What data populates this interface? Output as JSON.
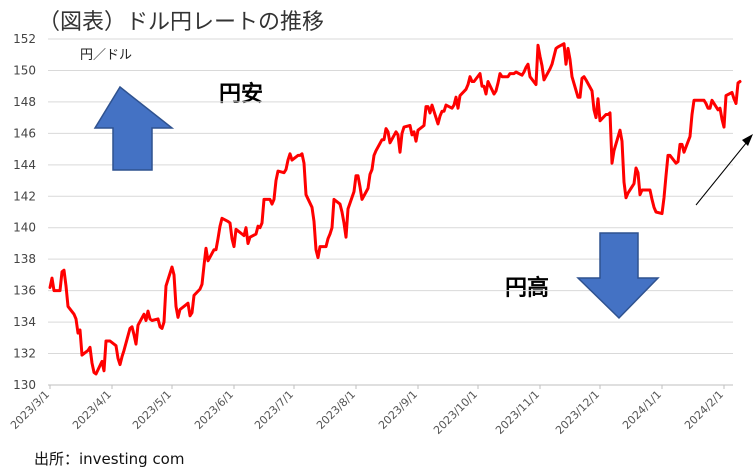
{
  "title": "（図表）ドル円レートの推移",
  "source": "出所：investing com",
  "annotations": {
    "unit": "円／ドル",
    "yen_weak": "円安",
    "yen_strong": "円高"
  },
  "colors": {
    "line": "#ff0000",
    "arrow_fill": "#4472c4",
    "arrow_stroke": "#2f528f",
    "grid": "#d9d9d9"
  },
  "chart_data": {
    "type": "line",
    "ylabel": "円／ドル",
    "ylim": [
      130,
      152
    ],
    "yticks": [
      130,
      132,
      134,
      136,
      138,
      140,
      142,
      144,
      146,
      148,
      150,
      152
    ],
    "xticks": [
      "2023/3/1",
      "2023/4/1",
      "2023/5/1",
      "2023/6/1",
      "2023/7/1",
      "2023/8/1",
      "2023/9/1",
      "2023/10/1",
      "2023/11/1",
      "2023/12/1",
      "2024/1/1",
      "2024/2/1"
    ],
    "grid": "horizontal",
    "legend": "none",
    "series": [
      {
        "points": [
          [
            "2023/3/1",
            136.2
          ],
          [
            "2023/3/2",
            136.8
          ],
          [
            "2023/3/3",
            136.0
          ],
          [
            "2023/3/6",
            136.0
          ],
          [
            "2023/3/7",
            137.2
          ],
          [
            "2023/3/8",
            137.3
          ],
          [
            "2023/3/9",
            136.3
          ],
          [
            "2023/3/10",
            135.0
          ],
          [
            "2023/3/13",
            134.5
          ],
          [
            "2023/3/14",
            134.2
          ],
          [
            "2023/3/15",
            133.3
          ],
          [
            "2023/3/16",
            133.5
          ],
          [
            "2023/3/17",
            131.9
          ],
          [
            "2023/3/20",
            132.2
          ],
          [
            "2023/3/21",
            132.4
          ],
          [
            "2023/3/22",
            131.4
          ],
          [
            "2023/3/23",
            130.8
          ],
          [
            "2023/3/24",
            130.7
          ],
          [
            "2023/3/27",
            131.5
          ],
          [
            "2023/3/28",
            130.9
          ],
          [
            "2023/3/29",
            132.8
          ],
          [
            "2023/3/30",
            132.8
          ],
          [
            "2023/3/31",
            132.8
          ],
          [
            "2023/4/3",
            132.5
          ],
          [
            "2023/4/4",
            131.7
          ],
          [
            "2023/4/5",
            131.3
          ],
          [
            "2023/4/6",
            131.8
          ],
          [
            "2023/4/7",
            132.2
          ],
          [
            "2023/4/10",
            133.6
          ],
          [
            "2023/4/11",
            133.7
          ],
          [
            "2023/4/12",
            133.2
          ],
          [
            "2023/4/13",
            132.6
          ],
          [
            "2023/4/14",
            133.8
          ],
          [
            "2023/4/17",
            134.5
          ],
          [
            "2023/4/18",
            134.1
          ],
          [
            "2023/4/19",
            134.7
          ],
          [
            "2023/4/20",
            134.2
          ],
          [
            "2023/4/21",
            134.1
          ],
          [
            "2023/4/24",
            134.2
          ],
          [
            "2023/4/25",
            133.7
          ],
          [
            "2023/4/26",
            133.6
          ],
          [
            "2023/4/27",
            134.0
          ],
          [
            "2023/4/28",
            136.3
          ],
          [
            "2023/5/1",
            137.5
          ],
          [
            "2023/5/2",
            137.0
          ],
          [
            "2023/5/3",
            135.0
          ],
          [
            "2023/5/4",
            134.3
          ],
          [
            "2023/5/5",
            134.8
          ],
          [
            "2023/5/8",
            135.1
          ],
          [
            "2023/5/9",
            135.2
          ],
          [
            "2023/5/10",
            134.4
          ],
          [
            "2023/5/11",
            134.6
          ],
          [
            "2023/5/12",
            135.7
          ],
          [
            "2023/5/15",
            136.1
          ],
          [
            "2023/5/16",
            136.4
          ],
          [
            "2023/5/17",
            137.6
          ],
          [
            "2023/5/18",
            138.7
          ],
          [
            "2023/5/19",
            137.9
          ],
          [
            "2023/5/22",
            138.6
          ],
          [
            "2023/5/23",
            138.6
          ],
          [
            "2023/5/24",
            139.3
          ],
          [
            "2023/5/25",
            140.1
          ],
          [
            "2023/5/26",
            140.6
          ],
          [
            "2023/5/29",
            140.4
          ],
          [
            "2023/5/30",
            140.3
          ],
          [
            "2023/5/31",
            139.3
          ],
          [
            "2023/6/1",
            138.8
          ],
          [
            "2023/6/2",
            139.9
          ],
          [
            "2023/6/5",
            139.6
          ],
          [
            "2023/6/6",
            139.5
          ],
          [
            "2023/6/7",
            140.0
          ],
          [
            "2023/6/8",
            139.0
          ],
          [
            "2023/6/9",
            139.4
          ],
          [
            "2023/6/12",
            139.6
          ],
          [
            "2023/6/13",
            140.1
          ],
          [
            "2023/6/14",
            140.0
          ],
          [
            "2023/6/15",
            140.3
          ],
          [
            "2023/6/16",
            141.8
          ],
          [
            "2023/6/19",
            141.8
          ],
          [
            "2023/6/20",
            141.5
          ],
          [
            "2023/6/21",
            141.8
          ],
          [
            "2023/6/22",
            143.0
          ],
          [
            "2023/6/23",
            143.6
          ],
          [
            "2023/6/26",
            143.5
          ],
          [
            "2023/6/27",
            143.7
          ],
          [
            "2023/6/28",
            144.3
          ],
          [
            "2023/6/29",
            144.7
          ],
          [
            "2023/6/30",
            144.3
          ],
          [
            "2023/7/3",
            144.6
          ],
          [
            "2023/7/4",
            144.6
          ],
          [
            "2023/7/5",
            144.7
          ],
          [
            "2023/7/6",
            144.1
          ],
          [
            "2023/7/7",
            142.1
          ],
          [
            "2023/7/10",
            141.3
          ],
          [
            "2023/7/11",
            140.4
          ],
          [
            "2023/7/12",
            138.6
          ],
          [
            "2023/7/13",
            138.1
          ],
          [
            "2023/7/14",
            138.8
          ],
          [
            "2023/7/17",
            138.8
          ],
          [
            "2023/7/18",
            139.3
          ],
          [
            "2023/7/19",
            139.6
          ],
          [
            "2023/7/20",
            140.0
          ],
          [
            "2023/7/21",
            141.8
          ],
          [
            "2023/7/24",
            141.5
          ],
          [
            "2023/7/25",
            141.0
          ],
          [
            "2023/7/26",
            140.3
          ],
          [
            "2023/7/27",
            139.4
          ],
          [
            "2023/7/28",
            141.2
          ],
          [
            "2023/7/31",
            142.3
          ],
          [
            "2023/8/1",
            143.3
          ],
          [
            "2023/8/2",
            143.3
          ],
          [
            "2023/8/3",
            142.6
          ],
          [
            "2023/8/4",
            141.8
          ],
          [
            "2023/8/7",
            142.5
          ],
          [
            "2023/8/8",
            143.4
          ],
          [
            "2023/8/9",
            143.7
          ],
          [
            "2023/8/10",
            144.6
          ],
          [
            "2023/8/11",
            144.9
          ],
          [
            "2023/8/14",
            145.6
          ],
          [
            "2023/8/15",
            145.6
          ],
          [
            "2023/8/16",
            146.3
          ],
          [
            "2023/8/17",
            146.1
          ],
          [
            "2023/8/18",
            145.4
          ],
          [
            "2023/8/21",
            146.1
          ],
          [
            "2023/8/22",
            145.9
          ],
          [
            "2023/8/23",
            144.8
          ],
          [
            "2023/8/24",
            146.0
          ],
          [
            "2023/8/25",
            146.4
          ],
          [
            "2023/8/28",
            146.5
          ],
          [
            "2023/8/29",
            145.9
          ],
          [
            "2023/8/30",
            146.1
          ],
          [
            "2023/8/31",
            145.5
          ],
          [
            "2023/9/1",
            146.2
          ],
          [
            "2023/9/4",
            146.5
          ],
          [
            "2023/9/5",
            147.7
          ],
          [
            "2023/9/6",
            147.7
          ],
          [
            "2023/9/7",
            147.3
          ],
          [
            "2023/9/8",
            147.8
          ],
          [
            "2023/9/11",
            146.6
          ],
          [
            "2023/9/12",
            147.1
          ],
          [
            "2023/9/13",
            147.4
          ],
          [
            "2023/9/14",
            147.4
          ],
          [
            "2023/9/15",
            147.8
          ],
          [
            "2023/9/18",
            147.6
          ],
          [
            "2023/9/19",
            147.8
          ],
          [
            "2023/9/20",
            148.3
          ],
          [
            "2023/9/21",
            147.6
          ],
          [
            "2023/9/22",
            148.4
          ],
          [
            "2023/9/25",
            148.8
          ],
          [
            "2023/9/26",
            149.1
          ],
          [
            "2023/9/27",
            149.6
          ],
          [
            "2023/9/28",
            149.3
          ],
          [
            "2023/9/29",
            149.3
          ],
          [
            "2023/10/2",
            149.8
          ],
          [
            "2023/10/3",
            149.0
          ],
          [
            "2023/10/4",
            149.0
          ],
          [
            "2023/10/5",
            148.5
          ],
          [
            "2023/10/6",
            149.3
          ],
          [
            "2023/10/9",
            148.5
          ],
          [
            "2023/10/10",
            148.7
          ],
          [
            "2023/10/11",
            149.2
          ],
          [
            "2023/10/12",
            149.8
          ],
          [
            "2023/10/13",
            149.6
          ],
          [
            "2023/10/16",
            149.6
          ],
          [
            "2023/10/17",
            149.8
          ],
          [
            "2023/10/18",
            149.8
          ],
          [
            "2023/10/19",
            149.8
          ],
          [
            "2023/10/20",
            149.9
          ],
          [
            "2023/10/23",
            149.7
          ],
          [
            "2023/10/24",
            149.9
          ],
          [
            "2023/10/25",
            150.2
          ],
          [
            "2023/10/26",
            150.4
          ],
          [
            "2023/10/27",
            149.6
          ],
          [
            "2023/10/30",
            149.1
          ],
          [
            "2023/10/31",
            151.6
          ],
          [
            "2023/11/1",
            150.9
          ],
          [
            "2023/11/2",
            150.3
          ],
          [
            "2023/11/3",
            149.4
          ],
          [
            "2023/11/6",
            150.1
          ],
          [
            "2023/11/7",
            150.4
          ],
          [
            "2023/11/8",
            150.9
          ],
          [
            "2023/11/9",
            151.4
          ],
          [
            "2023/11/10",
            151.5
          ],
          [
            "2023/11/13",
            151.7
          ],
          [
            "2023/11/14",
            150.4
          ],
          [
            "2023/11/15",
            151.4
          ],
          [
            "2023/11/16",
            150.7
          ],
          [
            "2023/11/17",
            149.6
          ],
          [
            "2023/11/20",
            148.3
          ],
          [
            "2023/11/21",
            148.3
          ],
          [
            "2023/11/22",
            149.5
          ],
          [
            "2023/11/23",
            149.6
          ],
          [
            "2023/11/24",
            149.4
          ],
          [
            "2023/11/27",
            148.7
          ],
          [
            "2023/11/28",
            147.5
          ],
          [
            "2023/11/29",
            147.0
          ],
          [
            "2023/11/30",
            148.2
          ],
          [
            "2023/12/1",
            146.8
          ],
          [
            "2023/12/4",
            147.2
          ],
          [
            "2023/12/5",
            147.2
          ],
          [
            "2023/12/6",
            147.3
          ],
          [
            "2023/12/7",
            144.1
          ],
          [
            "2023/12/8",
            144.9
          ],
          [
            "2023/12/11",
            146.2
          ],
          [
            "2023/12/12",
            145.5
          ],
          [
            "2023/12/13",
            142.9
          ],
          [
            "2023/12/14",
            141.9
          ],
          [
            "2023/12/15",
            142.2
          ],
          [
            "2023/12/18",
            142.8
          ],
          [
            "2023/12/19",
            143.8
          ],
          [
            "2023/12/20",
            143.5
          ],
          [
            "2023/12/21",
            142.1
          ],
          [
            "2023/12/22",
            142.4
          ],
          [
            "2023/12/25",
            142.4
          ],
          [
            "2023/12/26",
            142.4
          ],
          [
            "2023/12/27",
            141.8
          ],
          [
            "2023/12/28",
            141.3
          ],
          [
            "2023/12/29",
            141.0
          ],
          [
            "2024/1/1",
            140.9
          ],
          [
            "2024/1/2",
            141.9
          ],
          [
            "2024/1/3",
            143.3
          ],
          [
            "2024/1/4",
            144.6
          ],
          [
            "2024/1/5",
            144.6
          ],
          [
            "2024/1/8",
            144.1
          ],
          [
            "2024/1/9",
            144.2
          ],
          [
            "2024/1/10",
            145.3
          ],
          [
            "2024/1/11",
            145.3
          ],
          [
            "2024/1/12",
            144.8
          ],
          [
            "2024/1/15",
            145.8
          ],
          [
            "2024/1/16",
            147.2
          ],
          [
            "2024/1/17",
            148.1
          ],
          [
            "2024/1/18",
            148.1
          ],
          [
            "2024/1/19",
            148.1
          ],
          [
            "2024/1/22",
            148.1
          ],
          [
            "2024/1/23",
            147.9
          ],
          [
            "2024/1/24",
            147.6
          ],
          [
            "2024/1/25",
            147.6
          ],
          [
            "2024/1/26",
            148.1
          ],
          [
            "2024/1/29",
            147.5
          ],
          [
            "2024/1/30",
            147.6
          ],
          [
            "2024/1/31",
            146.9
          ],
          [
            "2024/2/1",
            146.4
          ],
          [
            "2024/2/2",
            148.4
          ],
          [
            "2024/2/5",
            148.6
          ],
          [
            "2024/2/6",
            148.2
          ],
          [
            "2024/2/7",
            147.9
          ],
          [
            "2024/2/8",
            149.2
          ],
          [
            "2024/2/9",
            149.3
          ]
        ]
      }
    ]
  }
}
